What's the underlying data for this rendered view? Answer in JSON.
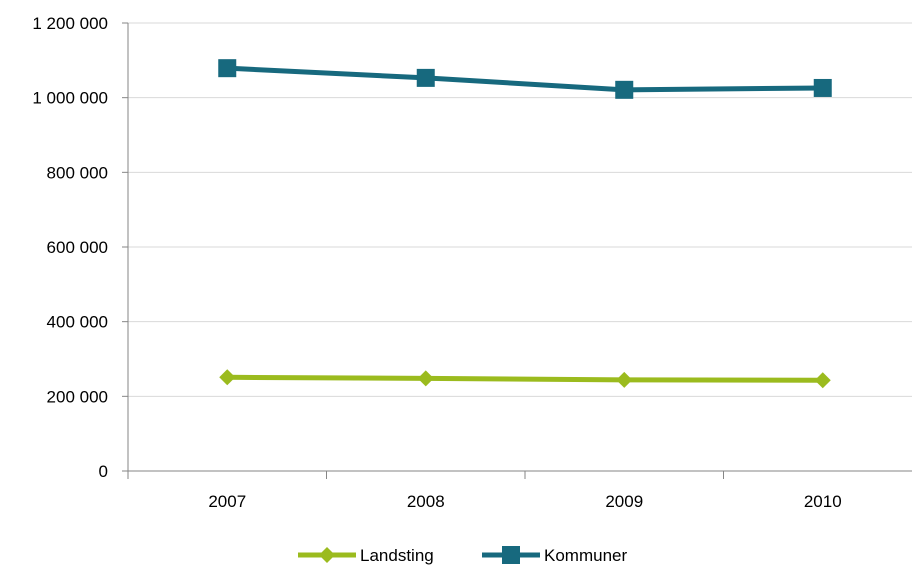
{
  "chart_data": {
    "type": "line",
    "title": "",
    "xlabel": "",
    "ylabel": "",
    "categories": [
      "2007",
      "2008",
      "2009",
      "2010"
    ],
    "ylim": [
      0,
      1200000
    ],
    "yticks": [
      0,
      200000,
      400000,
      600000,
      800000,
      1000000,
      1200000
    ],
    "ytick_labels": [
      "0",
      "200 000",
      "400 000",
      "600 000",
      "800 000",
      "1 000 000",
      "1 200 000"
    ],
    "grid": true,
    "legend_position": "bottom",
    "series": [
      {
        "name": "Landsting",
        "values": [
          251000,
          248000,
          244000,
          243000
        ],
        "color": "#9bbb1e",
        "marker": "diamond"
      },
      {
        "name": "Kommuner",
        "values": [
          1079000,
          1053000,
          1021000,
          1026000
        ],
        "color": "#17697e",
        "marker": "square"
      }
    ]
  }
}
